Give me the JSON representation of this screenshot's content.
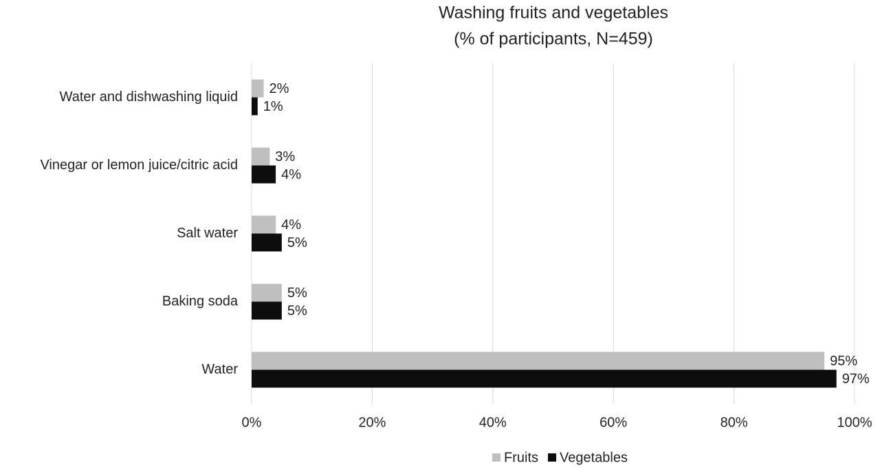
{
  "chart_data": {
    "type": "hbar",
    "title": "Washing fruits and vegetables",
    "subtitle": "(% of participants, N=459)",
    "categories": [
      "Water and dishwashing liquid",
      "Vinegar or lemon juice/citric acid",
      "Salt water",
      "Baking soda",
      "Water"
    ],
    "series": [
      {
        "name": "Fruits",
        "color": "#bfbfbf",
        "values": [
          2,
          3,
          4,
          5,
          95
        ],
        "value_labels": [
          "2%",
          "3%",
          "4%",
          "5%",
          "95%"
        ]
      },
      {
        "name": "Vegetables",
        "color": "#0d0d0d",
        "values": [
          1,
          4,
          5,
          5,
          97
        ],
        "value_labels": [
          "1%",
          "4%",
          "5%",
          "5%",
          "97%"
        ]
      }
    ],
    "xlim": [
      0,
      100
    ],
    "xticks": [
      {
        "value": 0,
        "label": "0%"
      },
      {
        "value": 20,
        "label": "20%"
      },
      {
        "value": 40,
        "label": "40%"
      },
      {
        "value": 60,
        "label": "60%"
      },
      {
        "value": 80,
        "label": "80%"
      },
      {
        "value": 100,
        "label": "100%"
      }
    ],
    "grid": true,
    "legend": "bottom"
  }
}
